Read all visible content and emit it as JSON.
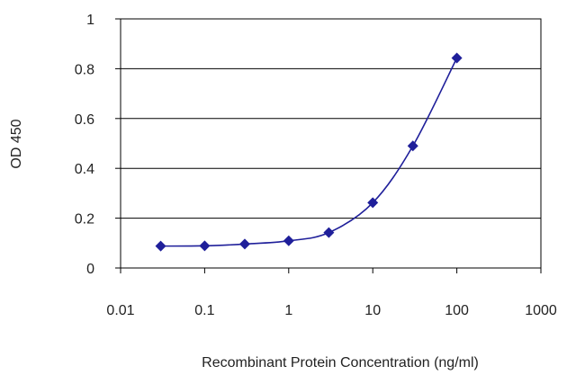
{
  "chart_data": {
    "type": "line",
    "title": "",
    "xlabel": "Recombinant Protein Concentration (ng/ml)",
    "ylabel": "OD 450",
    "x_scale": "log",
    "xlim": [
      0.01,
      1000
    ],
    "ylim": [
      0,
      1
    ],
    "x_ticks": [
      "0.01",
      "0.1",
      "1",
      "10",
      "100",
      "1000"
    ],
    "y_ticks": [
      "0",
      "0.2",
      "0.4",
      "0.6",
      "0.8",
      "1"
    ],
    "grid": "horizontal",
    "legend": "none",
    "series": [
      {
        "x": [
          0.03,
          0.1,
          0.3,
          1,
          3,
          10,
          30,
          100
        ],
        "y": [
          0.088,
          0.089,
          0.096,
          0.109,
          0.142,
          0.262,
          0.49,
          0.843
        ],
        "color": "#1f1f9a",
        "marker": "diamond"
      }
    ]
  }
}
